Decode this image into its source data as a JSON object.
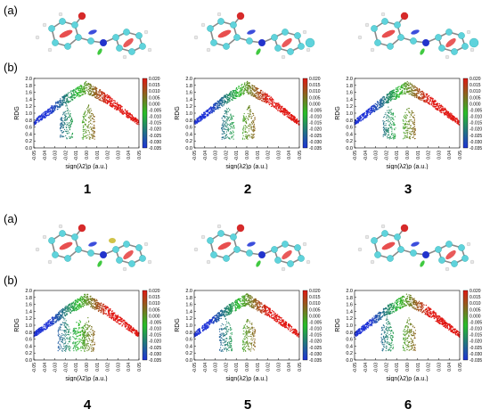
{
  "row_labels": {
    "a": "(a)",
    "b": "(b)"
  },
  "compounds": [
    "1",
    "2",
    "3",
    "4",
    "5",
    "6"
  ],
  "chart_data": [
    {
      "type": "scatter",
      "compound": "1",
      "ylabel": "RDG",
      "xlabel": "sign(λ2)ρ (a.u.)",
      "xlim": [
        -0.05,
        0.05
      ],
      "ylim": [
        0,
        2.0
      ],
      "yticks": [
        "0.0",
        "0.2",
        "0.4",
        "0.6",
        "0.8",
        "1.0",
        "1.2",
        "1.4",
        "1.6",
        "1.8",
        "2.0"
      ],
      "xticks": [
        "-0.05",
        "-0.04",
        "-0.03",
        "-0.02",
        "-0.01",
        "0.00",
        "0.01",
        "0.02",
        "0.03",
        "0.04",
        "0.05"
      ],
      "colorbar": {
        "ticks": [
          "0.020",
          "0.015",
          "0.010",
          "0.005",
          "0.000",
          "-0.005",
          "-0.010",
          "-0.015",
          "-0.020",
          "-0.025",
          "-0.030",
          "-0.035"
        ],
        "range": [
          -0.035,
          0.02
        ]
      },
      "spikes": [
        -0.019,
        0.002
      ]
    },
    {
      "type": "scatter",
      "compound": "2",
      "ylabel": "RDG",
      "xlabel": "sign(λ2)ρ (a.u.)",
      "xlim": [
        -0.05,
        0.05
      ],
      "ylim": [
        0,
        2.0
      ],
      "yticks": [
        "0.0",
        "0.2",
        "0.4",
        "0.6",
        "0.8",
        "1.0",
        "1.2",
        "1.4",
        "1.6",
        "1.8",
        "2.0"
      ],
      "xticks": [
        "-0.05",
        "-0.04",
        "-0.03",
        "-0.02",
        "-0.01",
        "0.00",
        "0.01",
        "0.02",
        "0.03",
        "0.04",
        "0.05"
      ],
      "colorbar": {
        "ticks": [
          "0.020",
          "0.015",
          "0.010",
          "0.005",
          "0.000",
          "-0.005",
          "-0.010",
          "-0.015",
          "-0.020",
          "-0.025",
          "-0.030",
          "-0.035"
        ],
        "range": [
          -0.035,
          0.02
        ]
      },
      "spikes": [
        -0.018,
        0.002
      ]
    },
    {
      "type": "scatter",
      "compound": "3",
      "ylabel": "RDG",
      "xlabel": "sign(λ2)ρ (a.u.)",
      "xlim": [
        -0.05,
        0.05
      ],
      "ylim": [
        0,
        2.0
      ],
      "yticks": [
        "0.0",
        "0.2",
        "0.4",
        "0.6",
        "0.8",
        "1.0",
        "1.2",
        "1.4",
        "1.6",
        "1.8",
        "2.0"
      ],
      "xticks": [
        "-0.05",
        "-0.04",
        "-0.03",
        "-0.02",
        "-0.01",
        "0.00",
        "0.01",
        "0.02",
        "0.03",
        "0.04",
        "0.05"
      ],
      "colorbar": {
        "ticks": [
          "0.020",
          "0.015",
          "0.010",
          "0.005",
          "0.000",
          "-0.005",
          "-0.010",
          "-0.015",
          "-0.020",
          "-0.025",
          "-0.030",
          "-0.035"
        ],
        "range": [
          -0.035,
          0.02
        ]
      },
      "spikes": [
        -0.017,
        0.002
      ]
    },
    {
      "type": "scatter",
      "compound": "4",
      "ylabel": "RDG",
      "xlabel": "sign(λ2)ρ (a.u.)",
      "xlim": [
        -0.05,
        0.05
      ],
      "ylim": [
        0,
        2.0
      ],
      "yticks": [
        "0.0",
        "0.2",
        "0.4",
        "0.6",
        "0.8",
        "1.0",
        "1.2",
        "1.4",
        "1.6",
        "1.8",
        "2.0"
      ],
      "xticks": [
        "-0.05",
        "-0.04",
        "-0.03",
        "-0.02",
        "-0.01",
        "0.00",
        "0.01",
        "0.02",
        "0.03",
        "0.04",
        "0.05"
      ],
      "colorbar": {
        "ticks": [
          "0.020",
          "0.015",
          "0.010",
          "0.005",
          "0.000",
          "-0.005",
          "-0.010",
          "-0.015",
          "-0.020",
          "-0.025",
          "-0.030",
          "-0.035"
        ],
        "range": [
          -0.035,
          0.02
        ]
      },
      "spikes": [
        -0.021,
        -0.007,
        0.002
      ]
    },
    {
      "type": "scatter",
      "compound": "5",
      "ylabel": "RDG",
      "xlabel": "sign(λ2)ρ (a.u.)",
      "xlim": [
        -0.05,
        0.05
      ],
      "ylim": [
        0,
        2.0
      ],
      "yticks": [
        "0.0",
        "0.2",
        "0.4",
        "0.6",
        "0.8",
        "1.0",
        "1.2",
        "1.4",
        "1.6",
        "1.8",
        "2.0"
      ],
      "xticks": [
        "-0.05",
        "-0.04",
        "-0.03",
        "-0.02",
        "-0.01",
        "0.00",
        "0.01",
        "0.02",
        "0.03",
        "0.04",
        "0.05"
      ],
      "colorbar": {
        "ticks": [
          "0.020",
          "0.015",
          "0.010",
          "0.005",
          "0.000",
          "-0.005",
          "-0.010",
          "-0.015",
          "-0.020",
          "-0.025",
          "-0.030",
          "-0.035"
        ],
        "range": [
          -0.035,
          0.02
        ]
      },
      "spikes": [
        -0.02,
        0.002
      ]
    },
    {
      "type": "scatter",
      "compound": "6",
      "ylabel": "RDG",
      "xlabel": "sign(λ2)ρ (a.u.)",
      "xlim": [
        -0.05,
        0.05
      ],
      "ylim": [
        0,
        2.0
      ],
      "yticks": [
        "0.0",
        "0.2",
        "0.4",
        "0.6",
        "0.8",
        "1.0",
        "1.2",
        "1.4",
        "1.6",
        "1.8",
        "2.0"
      ],
      "xticks": [
        "-0.05",
        "-0.04",
        "-0.03",
        "-0.02",
        "-0.01",
        "0.00",
        "0.01",
        "0.02",
        "0.03",
        "0.04",
        "0.05"
      ],
      "colorbar": {
        "ticks": [
          "0.020",
          "0.015",
          "0.010",
          "0.005",
          "0.000",
          "-0.005",
          "-0.010",
          "-0.015",
          "-0.020",
          "-0.025",
          "-0.030",
          "-0.035"
        ],
        "range": [
          -0.035,
          0.02
        ]
      },
      "spikes": [
        -0.019,
        0.002
      ]
    }
  ],
  "colors": {
    "blue": "#1a2fd6",
    "green": "#1fbf1f",
    "red": "#e01414",
    "atom": "#5fd3dc",
    "oxygen": "#d62a2a",
    "nitrogen": "#2233cc",
    "hydrogen": "#e8e8e8"
  }
}
